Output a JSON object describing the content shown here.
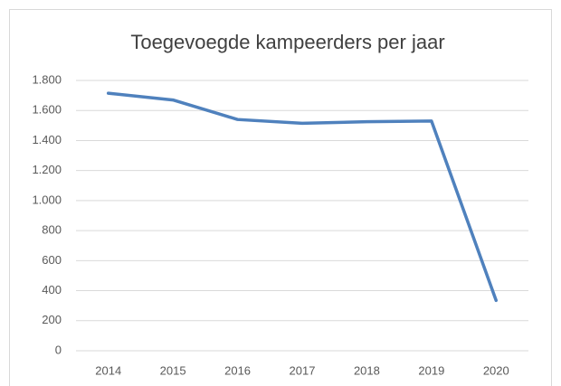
{
  "chart_data": {
    "type": "line",
    "title": "Toegevoegde kampeerders per jaar",
    "categories": [
      "2014",
      "2015",
      "2016",
      "2017",
      "2018",
      "2019",
      "2020"
    ],
    "series": [
      {
        "name": "Toegevoegde kampeerders",
        "color": "#4f81bd",
        "values": [
          1715,
          1670,
          1540,
          1515,
          1525,
          1530,
          335
        ]
      }
    ],
    "ylim": [
      0,
      1800
    ],
    "yticks": [
      0,
      200,
      400,
      600,
      800,
      {
        "value": 1000,
        "label": "1.000"
      },
      {
        "value": 1200,
        "label": "1.200"
      },
      {
        "value": 1400,
        "label": "1.400"
      },
      {
        "value": 1600,
        "label": "1.600"
      },
      {
        "value": 1800,
        "label": "1.800"
      }
    ],
    "grid": true
  }
}
